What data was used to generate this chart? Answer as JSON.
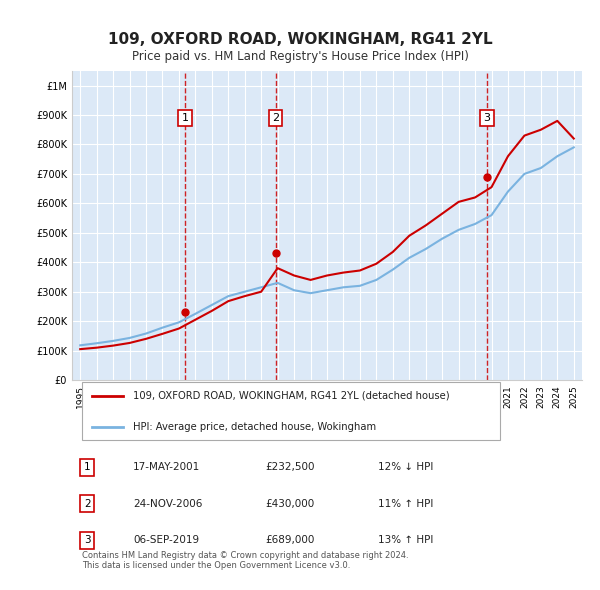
{
  "title": "109, OXFORD ROAD, WOKINGHAM, RG41 2YL",
  "subtitle": "Price paid vs. HM Land Registry's House Price Index (HPI)",
  "xlabel": "",
  "ylabel": "",
  "ylim": [
    0,
    1050000
  ],
  "yticks": [
    0,
    100000,
    200000,
    300000,
    400000,
    500000,
    600000,
    700000,
    800000,
    900000,
    1000000
  ],
  "ytick_labels": [
    "£0",
    "£100K",
    "£200K",
    "£300K",
    "£400K",
    "£500K",
    "£600K",
    "£700K",
    "£800K",
    "£900K",
    "£1M"
  ],
  "background_color": "#ffffff",
  "plot_bg_color": "#dce9f7",
  "grid_color": "#ffffff",
  "sale_dates": [
    "2001-05-17",
    "2006-11-24",
    "2019-09-06"
  ],
  "sale_prices": [
    232500,
    430000,
    689000
  ],
  "sale_labels": [
    "1",
    "2",
    "3"
  ],
  "hpi_line_color": "#7ab3e0",
  "price_line_color": "#cc0000",
  "dashed_line_color": "#cc0000",
  "legend_label_price": "109, OXFORD ROAD, WOKINGHAM, RG41 2YL (detached house)",
  "legend_label_hpi": "HPI: Average price, detached house, Wokingham",
  "table_rows": [
    {
      "num": "1",
      "date": "17-MAY-2001",
      "price": "£232,500",
      "hpi": "12% ↓ HPI"
    },
    {
      "num": "2",
      "date": "24-NOV-2006",
      "price": "£430,000",
      "hpi": "11% ↑ HPI"
    },
    {
      "num": "3",
      "date": "06-SEP-2019",
      "price": "£689,000",
      "hpi": "13% ↑ HPI"
    }
  ],
  "footer": "Contains HM Land Registry data © Crown copyright and database right 2024.\nThis data is licensed under the Open Government Licence v3.0.",
  "hpi_years": [
    1995,
    1996,
    1997,
    1998,
    1999,
    2000,
    2001,
    2002,
    2003,
    2004,
    2005,
    2006,
    2007,
    2008,
    2009,
    2010,
    2011,
    2012,
    2013,
    2014,
    2015,
    2016,
    2017,
    2018,
    2019,
    2020,
    2021,
    2022,
    2023,
    2024,
    2025
  ],
  "hpi_values": [
    118000,
    125000,
    133000,
    143000,
    158000,
    178000,
    196000,
    225000,
    255000,
    285000,
    300000,
    315000,
    330000,
    305000,
    295000,
    305000,
    315000,
    320000,
    340000,
    375000,
    415000,
    445000,
    480000,
    510000,
    530000,
    560000,
    640000,
    700000,
    720000,
    760000,
    790000
  ],
  "price_years": [
    1995,
    1996,
    1997,
    1998,
    1999,
    2000,
    2001,
    2002,
    2003,
    2004,
    2005,
    2006,
    2007,
    2008,
    2009,
    2010,
    2011,
    2012,
    2013,
    2014,
    2015,
    2016,
    2017,
    2018,
    2019,
    2020,
    2021,
    2022,
    2023,
    2024,
    2025
  ],
  "price_values": [
    105000,
    110000,
    117000,
    126000,
    140000,
    157000,
    175000,
    205000,
    235000,
    268000,
    285000,
    300000,
    380000,
    355000,
    340000,
    355000,
    365000,
    372000,
    395000,
    435000,
    490000,
    525000,
    565000,
    605000,
    620000,
    655000,
    760000,
    830000,
    850000,
    880000,
    820000
  ]
}
